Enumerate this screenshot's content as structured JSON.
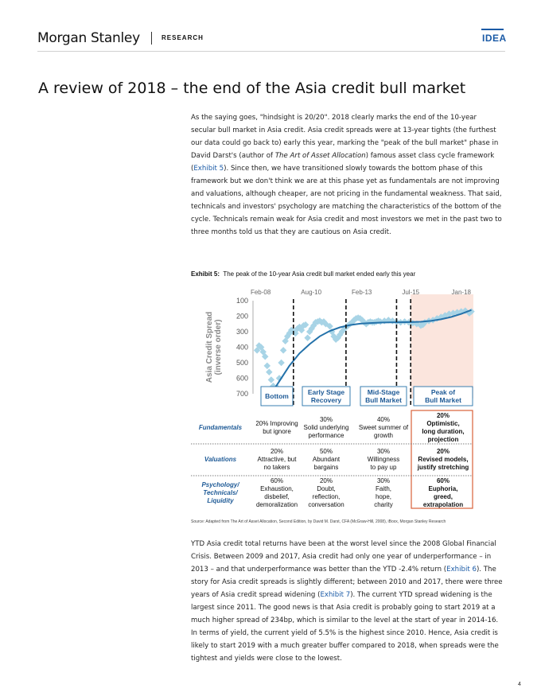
{
  "header": {
    "brand": "Morgan Stanley",
    "section": "RESEARCH",
    "tag": "IDEA"
  },
  "title": "A review of 2018 – the end of the Asia credit bull market",
  "paragraph1": {
    "p1": "As the saying goes, \"hindsight is 20/20\". 2018 clearly marks the end of the 10-year secular bull market in Asia credit. Asia credit spreads were at 13-year tights (the furthest our data could go back to) early this year, marking the \"peak of the bull market\" phase in David Darst's (author of ",
    "book": "The Art of Asset Allocation",
    "p2": ") famous asset class cycle framework (",
    "link": "Exhibit 5",
    "p3": "). Since then, we have transitioned slowly towards the bottom phase of this framework but we don't think we are at this phase yet as fundamentals are not improving and valuations, although cheaper, are not pricing in the fundamental weakness. That said, technicals and investors' psychology are matching the characteristics of the bottom of the cycle. Technicals remain weak for Asia credit and most investors we met in the past two to three months told us that they are cautious on Asia credit."
  },
  "exhibit": {
    "label": "Exhibit 5:",
    "caption": "The peak of the 10-year Asia credit bull market ended early this year"
  },
  "chart_data": {
    "type": "scatter",
    "ylabel": "Asia Credit Spread\n(inverse order)",
    "y_inverted": true,
    "ylim": [
      100,
      700
    ],
    "yticks": [
      100,
      200,
      300,
      400,
      500,
      600,
      700
    ],
    "xticks": [
      "Feb-08",
      "Aug-10",
      "Feb-13",
      "Jul-15",
      "Jan-18"
    ],
    "x_range_years": [
      2007.7,
      2018.6
    ],
    "tick_x": [
      2008.08,
      2010.58,
      2013.08,
      2015.5,
      2018.0
    ],
    "phase_dividers": [
      2009.7,
      2012.3,
      2014.8,
      2015.5
    ],
    "peak_shading": [
      2015.5,
      2018.6
    ],
    "colors": {
      "points": "#a8d4e6",
      "curve": "#2472aa",
      "box_border": "#2472aa",
      "box_text": "#1e5a96",
      "peak_fill": "#fbe5dd",
      "peak_border": "#d9613a"
    },
    "scatter": [
      [
        2007.9,
        420
      ],
      [
        2008.0,
        390
      ],
      [
        2008.1,
        400
      ],
      [
        2008.2,
        430
      ],
      [
        2008.3,
        460
      ],
      [
        2008.4,
        520
      ],
      [
        2008.5,
        560
      ],
      [
        2008.6,
        610
      ],
      [
        2008.7,
        650
      ],
      [
        2008.8,
        690
      ],
      [
        2008.9,
        660
      ],
      [
        2009.0,
        600
      ],
      [
        2009.1,
        500
      ],
      [
        2009.2,
        420
      ],
      [
        2009.3,
        360
      ],
      [
        2009.4,
        330
      ],
      [
        2009.5,
        310
      ],
      [
        2009.6,
        290
      ],
      [
        2009.7,
        300
      ],
      [
        2009.8,
        310
      ],
      [
        2009.9,
        280
      ],
      [
        2010.0,
        270
      ],
      [
        2010.1,
        290
      ],
      [
        2010.2,
        260
      ],
      [
        2010.3,
        255
      ],
      [
        2010.4,
        340
      ],
      [
        2010.5,
        300
      ],
      [
        2010.6,
        280
      ],
      [
        2010.7,
        260
      ],
      [
        2010.8,
        240
      ],
      [
        2010.9,
        235
      ],
      [
        2011.0,
        230
      ],
      [
        2011.1,
        240
      ],
      [
        2011.2,
        235
      ],
      [
        2011.3,
        250
      ],
      [
        2011.5,
        265
      ],
      [
        2011.6,
        300
      ],
      [
        2011.7,
        330
      ],
      [
        2011.8,
        350
      ],
      [
        2011.9,
        340
      ],
      [
        2012.0,
        320
      ],
      [
        2012.1,
        300
      ],
      [
        2012.2,
        285
      ],
      [
        2012.3,
        270
      ],
      [
        2012.4,
        260
      ],
      [
        2012.5,
        250
      ],
      [
        2012.6,
        240
      ],
      [
        2012.7,
        225
      ],
      [
        2012.8,
        215
      ],
      [
        2012.9,
        210
      ],
      [
        2013.0,
        215
      ],
      [
        2013.1,
        225
      ],
      [
        2013.2,
        240
      ],
      [
        2013.3,
        250
      ],
      [
        2013.4,
        240
      ],
      [
        2013.5,
        235
      ],
      [
        2013.6,
        240
      ],
      [
        2013.7,
        240
      ],
      [
        2013.8,
        235
      ],
      [
        2013.9,
        230
      ],
      [
        2014.0,
        235
      ],
      [
        2014.2,
        230
      ],
      [
        2014.4,
        225
      ],
      [
        2014.6,
        230
      ],
      [
        2014.8,
        235
      ],
      [
        2015.0,
        240
      ],
      [
        2015.2,
        235
      ],
      [
        2015.4,
        240
      ],
      [
        2015.6,
        245
      ],
      [
        2015.8,
        250
      ],
      [
        2016.0,
        260
      ],
      [
        2016.1,
        255
      ],
      [
        2016.2,
        240
      ],
      [
        2016.4,
        230
      ],
      [
        2016.6,
        225
      ],
      [
        2016.8,
        215
      ],
      [
        2017.0,
        205
      ],
      [
        2017.2,
        195
      ],
      [
        2017.4,
        185
      ],
      [
        2017.6,
        180
      ],
      [
        2017.8,
        175
      ],
      [
        2018.0,
        170
      ],
      [
        2018.2,
        165
      ],
      [
        2018.4,
        180
      ],
      [
        2018.5,
        170
      ]
    ],
    "trend": [
      [
        2008.6,
        700
      ],
      [
        2009.0,
        620
      ],
      [
        2009.5,
        520
      ],
      [
        2010.0,
        440
      ],
      [
        2010.5,
        380
      ],
      [
        2011.0,
        330
      ],
      [
        2011.5,
        295
      ],
      [
        2012.0,
        272
      ],
      [
        2012.5,
        257
      ],
      [
        2013.0,
        248
      ],
      [
        2013.5,
        244
      ],
      [
        2014.0,
        241
      ],
      [
        2014.5,
        240
      ],
      [
        2015.0,
        239
      ],
      [
        2015.5,
        238
      ],
      [
        2016.0,
        236
      ],
      [
        2016.5,
        230
      ],
      [
        2017.0,
        220
      ],
      [
        2017.5,
        205
      ],
      [
        2018.0,
        185
      ],
      [
        2018.5,
        160
      ]
    ],
    "phases": [
      {
        "name": "Bottom",
        "fundamentals": "20% Improving\nbut ignore",
        "valuations": "20%\nAttractive, but\nno takers",
        "psychology": "60%\nExhaustion,\ndisbelief,\ndemoralization"
      },
      {
        "name": "Early Stage\nRecovery",
        "fundamentals": "30%\nSolid underlying\nperformance",
        "valuations": "50%\nAbundant\nbargains",
        "psychology": "20%\nDoubt,\nreflection,\nconversation"
      },
      {
        "name": "Mid-Stage\nBull Market",
        "fundamentals": "40%\nSweet summer of\ngrowth",
        "valuations": "30%\nWillingness\nto pay up",
        "psychology": "30%\nFaith,\nhope,\ncharity"
      },
      {
        "name": "Peak of\nBull Market",
        "fundamentals": "20%\nOptimistic,\nlong duration,\nprojection",
        "valuations": "20%\nRevised models,\njustify stretching",
        "psychology": "60%\nEuphoria,\ngreed,\nextrapolation"
      }
    ],
    "row_labels": [
      "Fundamentals",
      "Valuations",
      "Psychology/\nTechnicals/\nLiquidity"
    ]
  },
  "source": "Source: Adapted from The Art of Asset Allocation, Second Edition, by David M. Darst, CFA (McGraw-Hill, 2008), iBoxx, Morgan Stanley Research",
  "paragraph2": {
    "p1": "YTD Asia credit total returns have been at the worst level since the 2008 Global Financial Crisis. Between 2009 and 2017, Asia credit had only one year of underperformance – in 2013 – and that underperformance was better than the YTD -2.4% return (",
    "link1": "Exhibit 6",
    "p2": "). The story for Asia credit spreads is slightly different; between 2010 and 2017, there were three years of Asia credit spread widening (",
    "link2": "Exhibit 7",
    "p3": "). The current YTD spread widening is the largest since 2011. The good news is that Asia credit is probably going to start 2019 at a much higher spread of 234bp, which is similar to the level at the start of year in 2014-16. In terms of yield, the current yield of 5.5% is the highest since 2010. Hence, Asia credit is likely to start 2019 with a much greater buffer compared to 2018, when spreads were the tightest and yields were close to the lowest."
  },
  "page_number": "4"
}
